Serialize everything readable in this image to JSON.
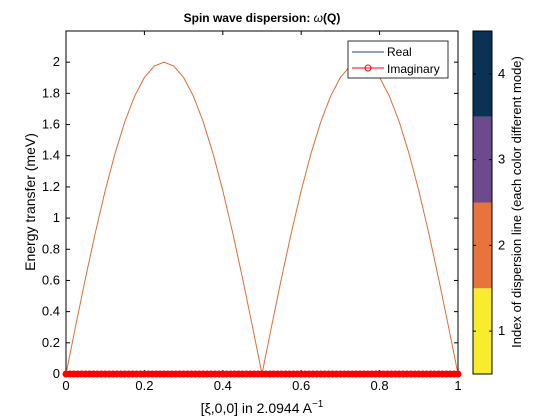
{
  "chart_data": {
    "type": "line",
    "title_text": "Spin wave dispersion: ",
    "title_symbol": "ω",
    "title_tail": "(Q)",
    "xlabel_main": "[ξ,0,0] in 2.0944 A",
    "xlabel_sup": "−1",
    "ylabel": "Energy transfer (meV)",
    "xlim": [
      0,
      1
    ],
    "ylim": [
      0,
      2.2
    ],
    "xticks": [
      0,
      0.2,
      0.4,
      0.6,
      0.8,
      1
    ],
    "xtick_labels": [
      "0",
      "0.2",
      "0.4",
      "0.6",
      "0.8",
      "1"
    ],
    "yticks": [
      0,
      0.2,
      0.4,
      0.6,
      0.8,
      1,
      1.2,
      1.4,
      1.6,
      1.8,
      2
    ],
    "ytick_labels": [
      "0",
      "0.2",
      "0.4",
      "0.6",
      "0.8",
      "1",
      "1.2",
      "1.4",
      "1.6",
      "1.8",
      "2"
    ],
    "grid": false,
    "legend_position": "top-right",
    "series": [
      {
        "name": "Real",
        "color": "#e06c34",
        "x": [
          0,
          0.025,
          0.05,
          0.075,
          0.1,
          0.125,
          0.15,
          0.175,
          0.2,
          0.225,
          0.25,
          0.275,
          0.3,
          0.325,
          0.35,
          0.375,
          0.4,
          0.425,
          0.45,
          0.475,
          0.5,
          0.525,
          0.55,
          0.575,
          0.6,
          0.625,
          0.65,
          0.675,
          0.7,
          0.725,
          0.75,
          0.775,
          0.8,
          0.825,
          0.85,
          0.875,
          0.9,
          0.925,
          0.95,
          0.975,
          1
        ],
        "y": [
          0,
          0.313,
          0.618,
          0.908,
          1.176,
          1.414,
          1.618,
          1.782,
          1.902,
          1.975,
          2,
          1.975,
          1.902,
          1.782,
          1.618,
          1.414,
          1.176,
          0.908,
          0.618,
          0.313,
          0,
          0.313,
          0.618,
          0.908,
          1.176,
          1.414,
          1.618,
          1.782,
          1.902,
          1.975,
          2,
          1.975,
          1.902,
          1.782,
          1.618,
          1.414,
          1.176,
          0.908,
          0.618,
          0.313,
          0
        ]
      },
      {
        "name": "Imaginary",
        "color": "#ff0000",
        "marker": "circle",
        "x_range": [
          0,
          1
        ],
        "y_value": 0
      }
    ],
    "legend_line_color_real": "#1f4e5f",
    "colorbar": {
      "label": "Index of dispersion line (each color different mode)",
      "range": [
        0.5,
        4.5
      ],
      "ticks": [
        1,
        2,
        3,
        4
      ],
      "tick_labels": [
        "1",
        "2",
        "3",
        "4"
      ],
      "colors": [
        "#f8ec2c",
        "#e8733c",
        "#6b4a8e",
        "#0b3154"
      ]
    }
  }
}
